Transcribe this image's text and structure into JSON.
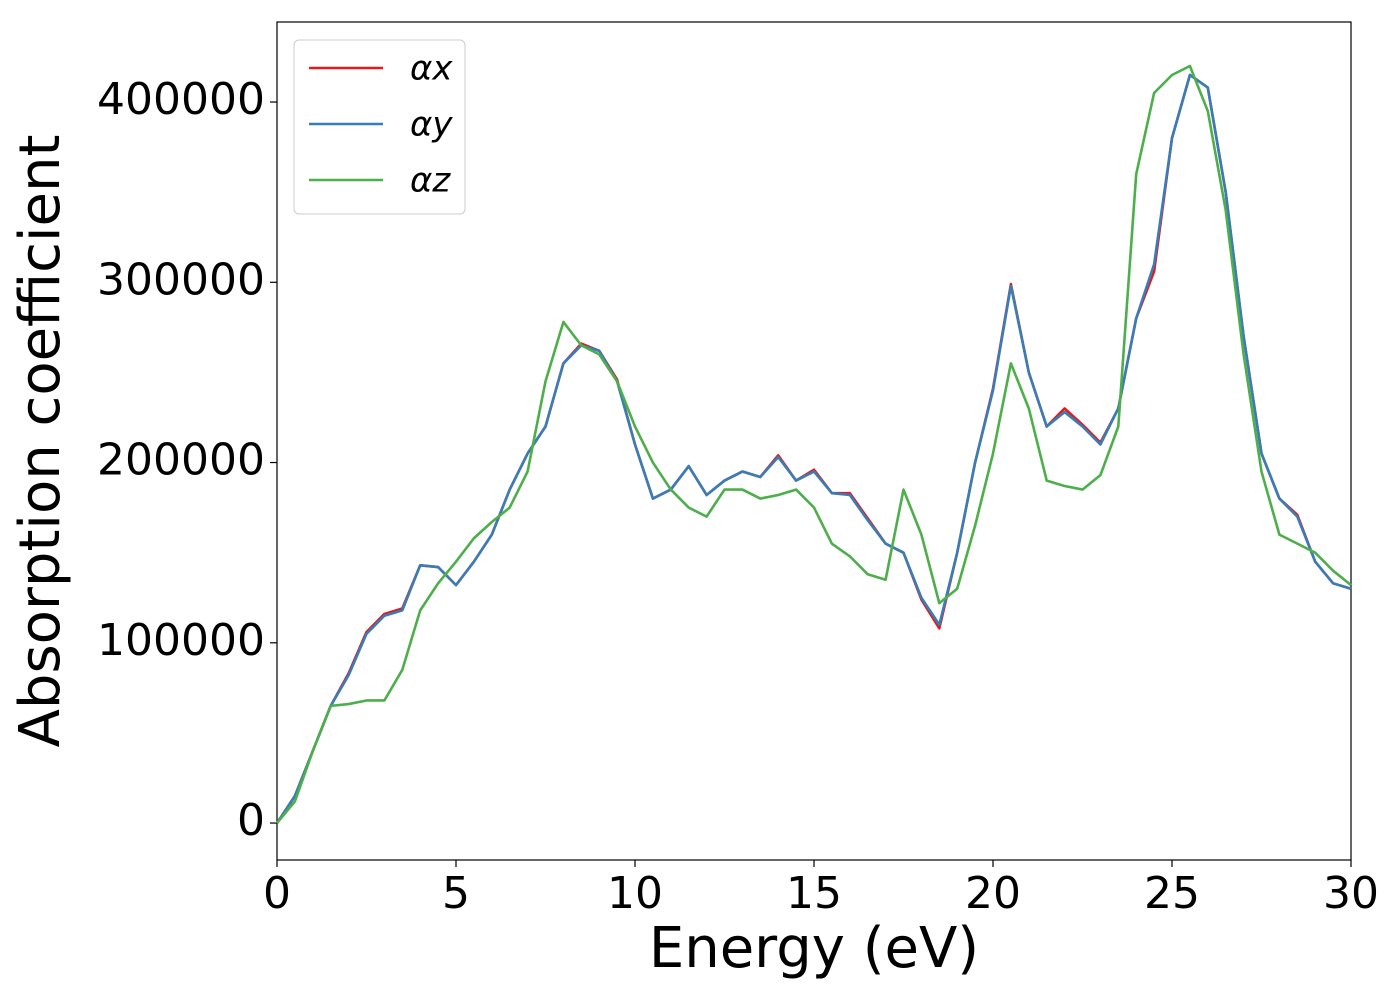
{
  "chart_data": {
    "type": "line",
    "x_label": "Energy (eV)",
    "y_label": "Absorption coefficient",
    "x": [
      0,
      0.5,
      1,
      1.5,
      2,
      2.5,
      3,
      3.5,
      4,
      4.5,
      5,
      5.5,
      6,
      6.5,
      7,
      7.5,
      8,
      8.5,
      9,
      9.5,
      10,
      10.5,
      11,
      11.5,
      12,
      12.5,
      13,
      13.5,
      14,
      14.5,
      15,
      15.5,
      16,
      16.5,
      17,
      17.5,
      18,
      18.5,
      19,
      19.5,
      20,
      20.5,
      21,
      21.5,
      22,
      22.5,
      23,
      23.5,
      24,
      24.5,
      25,
      25.5,
      26,
      26.5,
      27,
      27.5,
      28,
      28.5,
      29,
      29.5,
      30
    ],
    "series": [
      {
        "name": "αx",
        "color": "#e41a1c",
        "values": [
          0,
          15000,
          40000,
          65000,
          83000,
          106000,
          116000,
          119000,
          143000,
          142000,
          132000,
          145000,
          160000,
          185000,
          205000,
          220000,
          255000,
          266000,
          262000,
          246000,
          210000,
          180000,
          185000,
          198000,
          182000,
          190000,
          195000,
          192000,
          204000,
          190000,
          196000,
          183000,
          183000,
          169000,
          155000,
          150000,
          124000,
          108000,
          150000,
          200000,
          241000,
          299000,
          250000,
          220000,
          230000,
          221000,
          211000,
          230000,
          280000,
          306000,
          380000,
          415000,
          408000,
          350000,
          270000,
          205000,
          180000,
          171000,
          145000,
          133000,
          130000
        ]
      },
      {
        "name": "αy",
        "color": "#377eb8",
        "values": [
          0,
          15000,
          40000,
          65000,
          82000,
          105000,
          115000,
          118000,
          143000,
          142000,
          132000,
          145000,
          160000,
          185000,
          205000,
          220000,
          255000,
          265000,
          262000,
          245000,
          210000,
          180000,
          185000,
          198000,
          182000,
          190000,
          195000,
          192000,
          203000,
          190000,
          195000,
          183000,
          182000,
          168000,
          155000,
          150000,
          125000,
          110000,
          150000,
          200000,
          240000,
          298000,
          250000,
          220000,
          228000,
          220000,
          210000,
          230000,
          280000,
          310000,
          380000,
          415000,
          408000,
          350000,
          270000,
          205000,
          180000,
          170000,
          145000,
          133000,
          130000
        ]
      },
      {
        "name": "αz",
        "color": "#4daf4a",
        "values": [
          0,
          12000,
          40000,
          65000,
          66000,
          68000,
          68000,
          85000,
          118000,
          133000,
          145000,
          158000,
          167000,
          175000,
          195000,
          245000,
          278000,
          265000,
          260000,
          245000,
          220000,
          200000,
          185000,
          175000,
          170000,
          185000,
          185000,
          180000,
          182000,
          185000,
          175000,
          155000,
          148000,
          138000,
          135000,
          185000,
          160000,
          122000,
          130000,
          165000,
          205000,
          255000,
          230000,
          190000,
          187000,
          185000,
          193000,
          220000,
          360000,
          405000,
          415000,
          420000,
          395000,
          340000,
          260000,
          195000,
          160000,
          155000,
          150000,
          140000,
          132000
        ]
      }
    ],
    "xlim": [
      0,
      30
    ],
    "xticks": [
      0,
      5,
      10,
      15,
      20,
      25,
      30
    ],
    "ylim": [
      -20500,
      444400
    ],
    "yticks": [
      0,
      100000,
      200000,
      300000,
      400000
    ],
    "legend": "upper left",
    "grid": false
  }
}
